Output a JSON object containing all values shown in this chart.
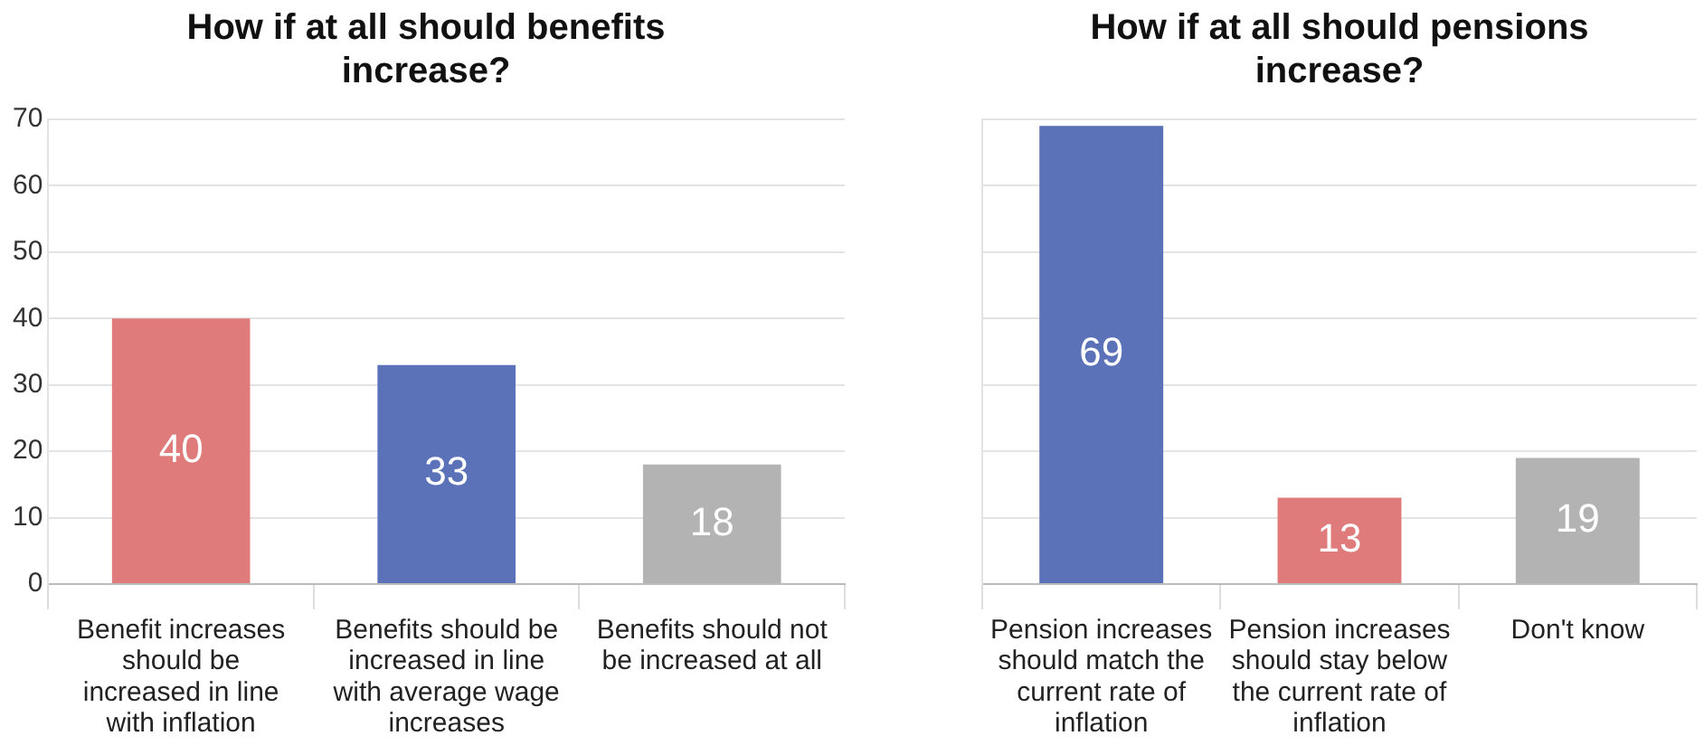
{
  "chart_data": [
    {
      "type": "bar",
      "title": "How if at all should benefits increase?",
      "categories": [
        "Benefit increases should be increased in line with inflation",
        "Benefits should be increased in line with average wage increases",
        "Benefits should not be increased at all"
      ],
      "values": [
        40,
        33,
        18
      ],
      "colors": [
        "#e07b7b",
        "#5b72b8",
        "#b3b3b3"
      ],
      "ylim": [
        0,
        70
      ],
      "yticks": [
        0,
        10,
        20,
        30,
        40,
        50,
        60,
        70
      ],
      "grid": "y",
      "data_labels": true
    },
    {
      "type": "bar",
      "title": "How if at all should pensions increase?",
      "categories": [
        "Pension increases should match the current rate of inflation",
        "Pension increases should stay below the current rate of inflation",
        "Don't know"
      ],
      "values": [
        69,
        13,
        19
      ],
      "colors": [
        "#5b72b8",
        "#e07b7b",
        "#b3b3b3"
      ],
      "ylim": [
        0,
        70
      ],
      "yticks": [
        0,
        10,
        20,
        30,
        40,
        50,
        60,
        70
      ],
      "grid": "y",
      "data_labels": true,
      "tick_labels": "x"
    }
  ]
}
